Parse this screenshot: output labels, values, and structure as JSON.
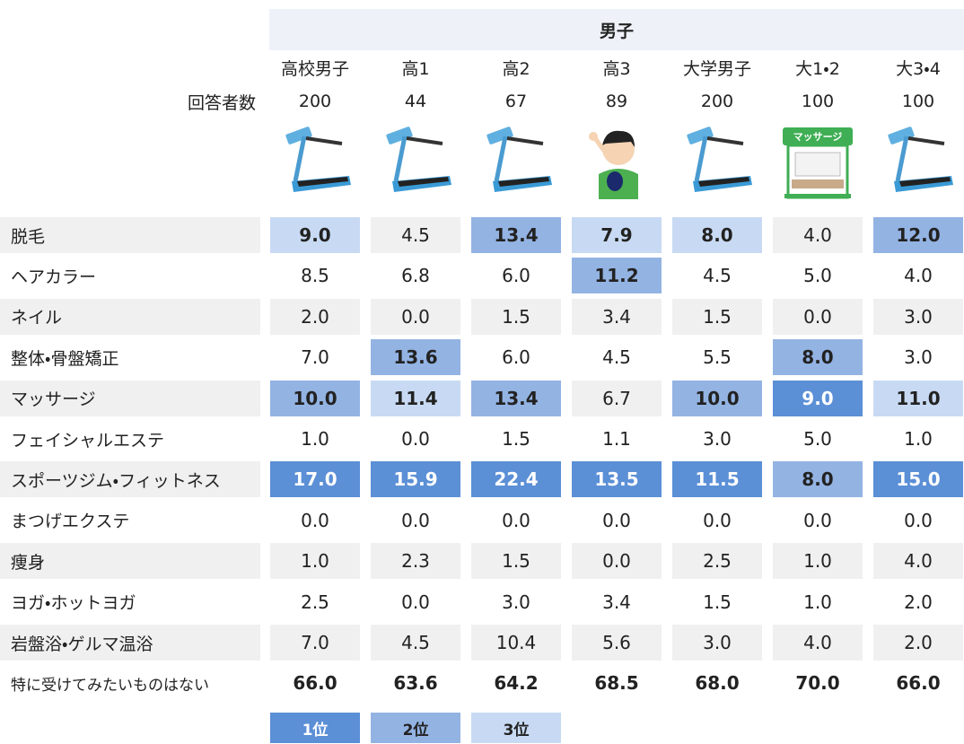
{
  "header": {
    "group": "男子",
    "respondents_label": "回答者数",
    "shop_sign": "マッサージ"
  },
  "columns": [
    {
      "name": "高校男子",
      "n": 200
    },
    {
      "name": "高1",
      "n": 44
    },
    {
      "name": "高2",
      "n": 67
    },
    {
      "name": "高3",
      "n": 89
    },
    {
      "name": "大学男子",
      "n": 200
    },
    {
      "name": "大1・2",
      "n": 100
    },
    {
      "name": "大3・4",
      "n": 100
    }
  ],
  "rows": [
    {
      "label": "脱毛",
      "values": [
        "9.0",
        "4.5",
        "13.4",
        "7.9",
        "8.0",
        "4.0",
        "12.0"
      ],
      "ranks": [
        3,
        null,
        2,
        3,
        3,
        null,
        2
      ]
    },
    {
      "label": "ヘアカラー",
      "values": [
        "8.5",
        "6.8",
        "6.0",
        "11.2",
        "4.5",
        "5.0",
        "4.0"
      ],
      "ranks": [
        null,
        null,
        null,
        2,
        null,
        null,
        null
      ]
    },
    {
      "label": "ネイル",
      "values": [
        "2.0",
        "0.0",
        "1.5",
        "3.4",
        "1.5",
        "0.0",
        "3.0"
      ],
      "ranks": [
        null,
        null,
        null,
        null,
        null,
        null,
        null
      ]
    },
    {
      "label": "整体・骨盤矯正",
      "values": [
        "7.0",
        "13.6",
        "6.0",
        "4.5",
        "5.5",
        "8.0",
        "3.0"
      ],
      "ranks": [
        null,
        2,
        null,
        null,
        null,
        2,
        null
      ]
    },
    {
      "label": "マッサージ",
      "values": [
        "10.0",
        "11.4",
        "13.4",
        "6.7",
        "10.0",
        "9.0",
        "11.0"
      ],
      "ranks": [
        2,
        3,
        2,
        null,
        2,
        1,
        3
      ]
    },
    {
      "label": "フェイシャルエステ",
      "values": [
        "1.0",
        "0.0",
        "1.5",
        "1.1",
        "3.0",
        "5.0",
        "1.0"
      ],
      "ranks": [
        null,
        null,
        null,
        null,
        null,
        null,
        null
      ]
    },
    {
      "label": "スポーツジム・フィットネス",
      "values": [
        "17.0",
        "15.9",
        "22.4",
        "13.5",
        "11.5",
        "8.0",
        "15.0"
      ],
      "ranks": [
        1,
        1,
        1,
        1,
        1,
        2,
        1
      ]
    },
    {
      "label": "まつげエクステ",
      "values": [
        "0.0",
        "0.0",
        "0.0",
        "0.0",
        "0.0",
        "0.0",
        "0.0"
      ],
      "ranks": [
        null,
        null,
        null,
        null,
        null,
        null,
        null
      ]
    },
    {
      "label": "痩身",
      "values": [
        "1.0",
        "2.3",
        "1.5",
        "0.0",
        "2.5",
        "1.0",
        "4.0"
      ],
      "ranks": [
        null,
        null,
        null,
        null,
        null,
        null,
        null
      ]
    },
    {
      "label": "ヨガ・ホットヨガ",
      "values": [
        "2.5",
        "0.0",
        "3.0",
        "3.4",
        "1.5",
        "1.0",
        "2.0"
      ],
      "ranks": [
        null,
        null,
        null,
        null,
        null,
        null,
        null
      ]
    },
    {
      "label": "岩盤浴・ゲルマ温浴",
      "values": [
        "7.0",
        "4.5",
        "10.4",
        "5.6",
        "3.0",
        "4.0",
        "2.0"
      ],
      "ranks": [
        null,
        null,
        null,
        null,
        null,
        null,
        null
      ]
    },
    {
      "label": "特に受けてみたいものはない",
      "values": [
        "66.0",
        "63.6",
        "64.2",
        "68.5",
        "68.0",
        "70.0",
        "66.0"
      ],
      "ranks": [
        null,
        null,
        null,
        null,
        null,
        null,
        null
      ],
      "bold": true
    }
  ],
  "legend": [
    {
      "label": "1位",
      "color": "#5b8fd6",
      "text_color": "#ffffff"
    },
    {
      "label": "2位",
      "color": "#93b3e3",
      "text_color": "#222222"
    },
    {
      "label": "3位",
      "color": "#c8daf3",
      "text_color": "#222222"
    }
  ]
}
